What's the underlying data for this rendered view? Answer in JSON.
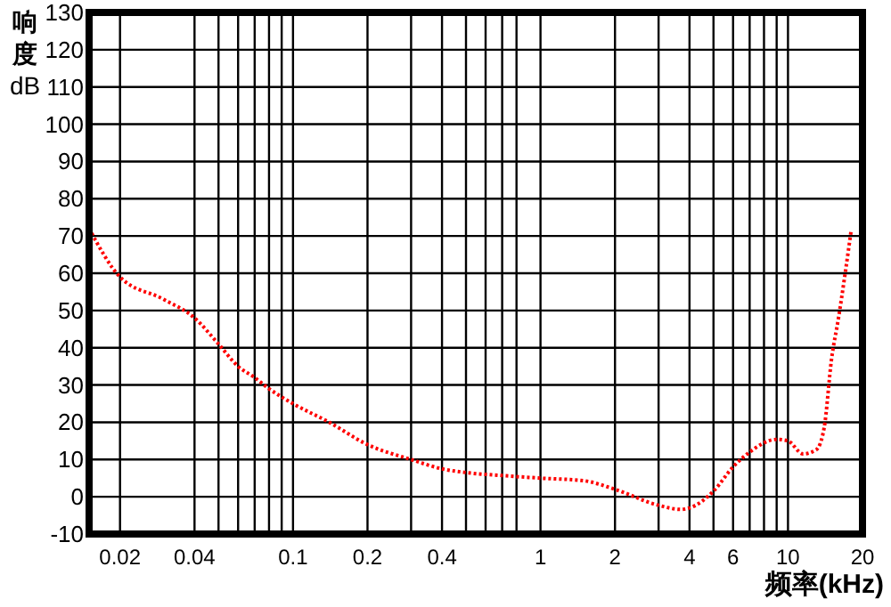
{
  "chart_data": {
    "type": "line",
    "xlabel": "频率(kHz)",
    "ylabel": "响度 dB",
    "log": "x",
    "xlim": [
      0.015,
      20
    ],
    "ylim": [
      -10,
      130
    ],
    "xticks": [
      0.02,
      0.04,
      {
        "value": 0.05,
        "label": null
      },
      {
        "value": 0.06,
        "label": null
      },
      {
        "value": 0.07,
        "label": null
      },
      {
        "value": 0.08,
        "label": null
      },
      {
        "value": 0.09,
        "label": null
      },
      0.1,
      0.2,
      {
        "value": 0.3,
        "label": null
      },
      0.4,
      {
        "value": 0.5,
        "label": null
      },
      {
        "value": 0.6,
        "label": null
      },
      {
        "value": 0.7,
        "label": null
      },
      {
        "value": 0.8,
        "label": null
      },
      1,
      2,
      {
        "value": 3,
        "label": null
      },
      4,
      {
        "value": 5,
        "label": null
      },
      6,
      {
        "value": 7,
        "label": null
      },
      {
        "value": 8,
        "label": null
      },
      {
        "value": 9,
        "label": null
      },
      10,
      20
    ],
    "yticks": [
      -10,
      0,
      10,
      20,
      30,
      40,
      50,
      60,
      70,
      80,
      90,
      100,
      110,
      120,
      130
    ],
    "grid": true,
    "marker": "none",
    "line_style": "dotted",
    "x": [
      0.015,
      0.02,
      0.03,
      0.04,
      0.05,
      0.06,
      0.07,
      0.08,
      0.1,
      0.14,
      0.2,
      0.3,
      0.4,
      0.5,
      0.7,
      1,
      1.5,
      2,
      3,
      3.7,
      4,
      5,
      6,
      7,
      9,
      10,
      11.5,
      13,
      14,
      15,
      16,
      18
    ],
    "series": [
      {
        "color": "#ff0000",
        "values": [
          72,
          59,
          53,
          48,
          41,
          35,
          32,
          29,
          25,
          20,
          14,
          10,
          7.5,
          6.5,
          5.7,
          5,
          4.3,
          2,
          -2.3,
          -3.4,
          -3,
          1.5,
          8,
          12,
          15.4,
          15,
          11.5,
          12.6,
          18.5,
          37,
          48,
          71.5
        ]
      }
    ]
  }
}
